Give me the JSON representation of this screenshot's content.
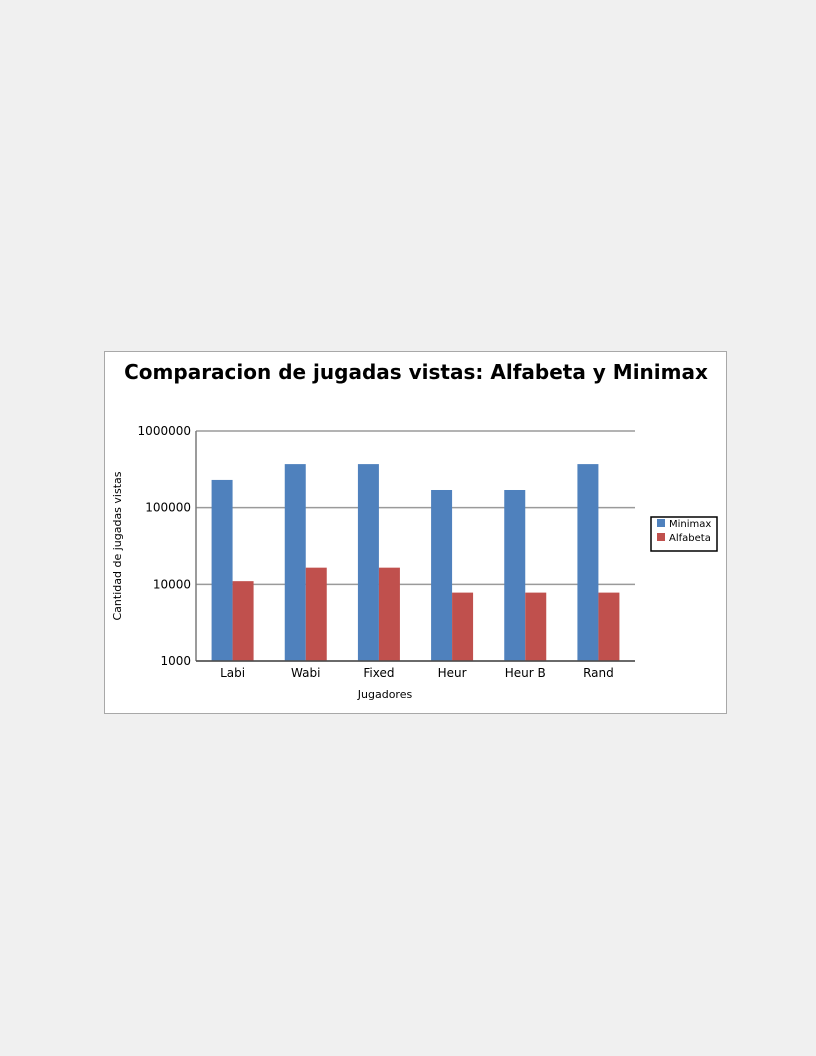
{
  "chart_data": {
    "type": "bar",
    "title": "Comparacion de jugadas vistas: Alfabeta y Minimax",
    "xlabel": "Jugadores",
    "ylabel": "Cantidad de jugadas vistas",
    "scale": "log",
    "ylim": [
      1000,
      1000000
    ],
    "yticks": [
      "1000",
      "10000",
      "100000",
      "1000000"
    ],
    "grid": true,
    "legend_position": "right",
    "categories": [
      "Labi",
      "Wabi",
      "Fixed",
      "Heur",
      "Heur B",
      "Rand"
    ],
    "series": [
      {
        "name": "Minimax",
        "color": "#4f81bd",
        "values": [
          230000,
          370000,
          370000,
          170000,
          170000,
          370000
        ]
      },
      {
        "name": "Alfabeta",
        "color": "#c0504d",
        "values": [
          11000,
          16500,
          16500,
          7800,
          7800,
          7800
        ]
      }
    ]
  }
}
